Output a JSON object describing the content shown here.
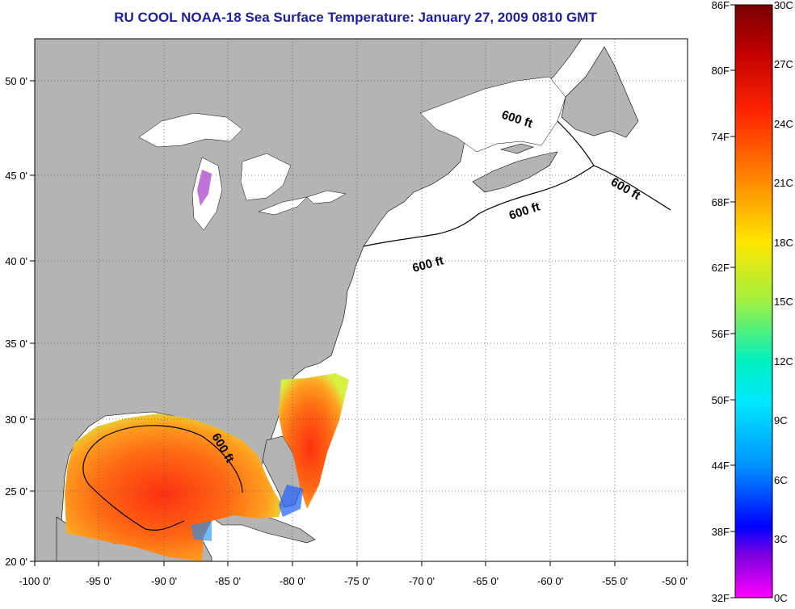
{
  "title": "RU COOL  NOAA-18  Sea Surface Temperature:  January 27, 2009 0810 GMT",
  "axes": {
    "lon_labels": [
      "-100 0'",
      "-95 0'",
      "-90 0'",
      "-85 0'",
      "-80 0'",
      "-75 0'",
      "-70 0'",
      "-65 0'",
      "-60 0'",
      "-55 0'",
      "-50 0'"
    ],
    "lat_labels": [
      "50 0'",
      "45 0'",
      "40 0'",
      "35 0'",
      "30 0'",
      "25 0'",
      "20 0'"
    ]
  },
  "contour_label": "600 ft",
  "colorbar": {
    "fahrenheit_labels": [
      "86F",
      "80F",
      "74F",
      "68F",
      "62F",
      "56F",
      "50F",
      "44F",
      "38F",
      "32F"
    ],
    "celsius_labels": [
      "30C",
      "27C",
      "24C",
      "21C",
      "18C",
      "15C",
      "12C",
      "9C",
      "6C",
      "3C",
      "0C"
    ]
  },
  "colors": {
    "land": "#b4b4b4",
    "title": "#1d1fa5",
    "grid": "#555555"
  }
}
